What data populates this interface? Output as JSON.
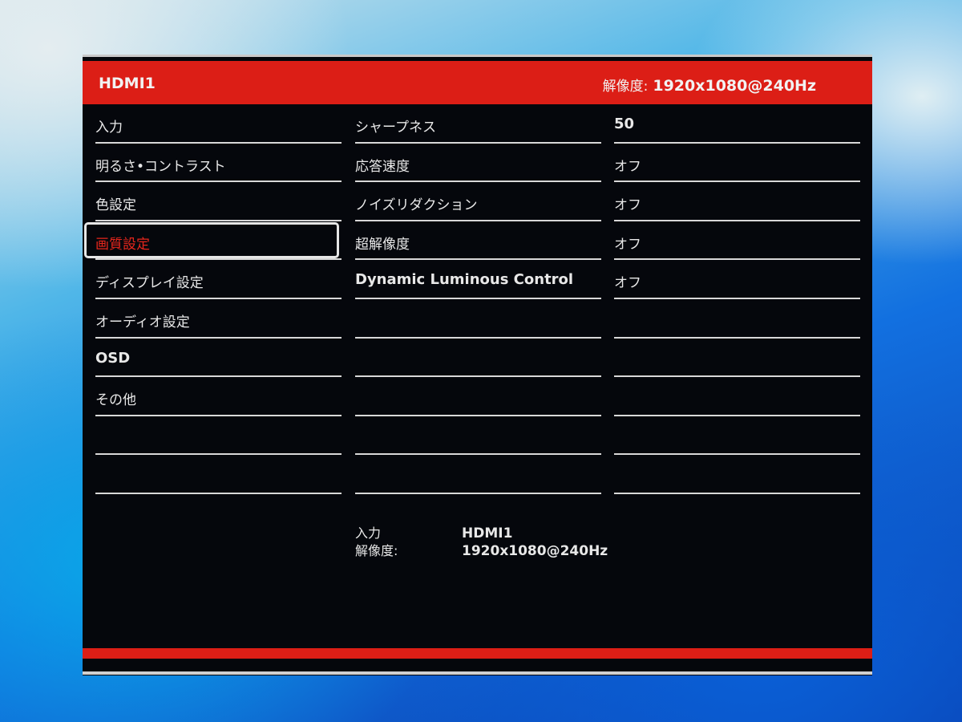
{
  "header": {
    "input": "HDMI1",
    "resolution_label": "解像度:",
    "resolution_value": "1920x1080@240Hz"
  },
  "menu": [
    "入力",
    "明るさ•コントラスト",
    "色設定",
    "画質設定",
    "ディスプレイ設定",
    "オーディオ設定",
    "OSD",
    "その他",
    "",
    ""
  ],
  "selected_index": 3,
  "settings": [
    {
      "label": "シャープネス",
      "value": "50"
    },
    {
      "label": "応答速度",
      "value": "オフ"
    },
    {
      "label": "ノイズリダクション",
      "value": "オフ"
    },
    {
      "label": "超解像度",
      "value": "オフ"
    },
    {
      "label": "Dynamic Luminous Control",
      "value": "オフ"
    },
    {
      "label": "",
      "value": ""
    },
    {
      "label": "",
      "value": ""
    },
    {
      "label": "",
      "value": ""
    },
    {
      "label": "",
      "value": ""
    },
    {
      "label": "",
      "value": ""
    }
  ],
  "info": {
    "input_label": "入力",
    "input_value": "HDMI1",
    "resolution_label": "解像度:",
    "resolution_value": "1920x1080@240Hz"
  },
  "colors": {
    "accent": "#dc1e16",
    "background": "#05070c",
    "text": "#e8e8e8",
    "selected_text": "#e8261c"
  }
}
